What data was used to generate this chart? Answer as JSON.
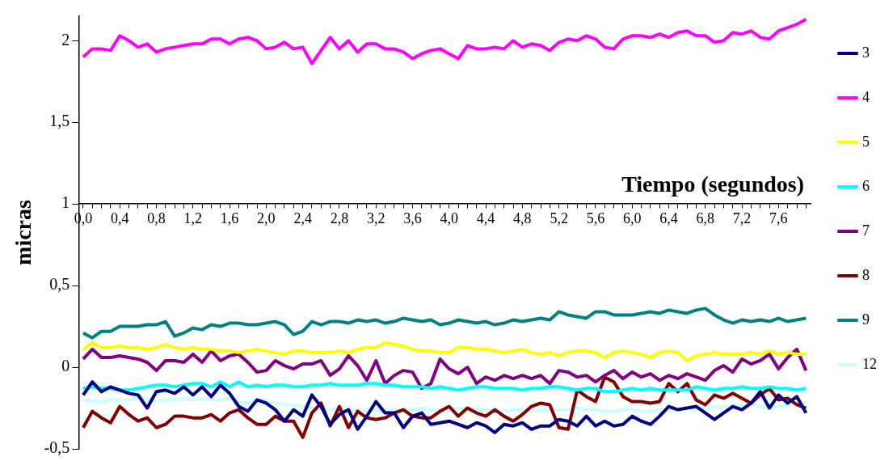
{
  "chart_data": {
    "type": "line",
    "ylabel": "micras",
    "xlabel": "Tiempo (segundos)",
    "categories": [
      "0,0",
      null,
      null,
      null,
      "0,4",
      null,
      null,
      null,
      "0,8",
      null,
      null,
      null,
      "1,2",
      null,
      null,
      null,
      "1,6",
      null,
      null,
      null,
      "2,0",
      null,
      null,
      null,
      "2,4",
      null,
      null,
      null,
      "2,8",
      null,
      null,
      null,
      "3,2",
      null,
      null,
      null,
      "3,6",
      null,
      null,
      null,
      "4,0",
      null,
      null,
      null,
      "4,4",
      null,
      null,
      null,
      "4,8",
      null,
      null,
      null,
      "5,2",
      null,
      null,
      null,
      "5,6",
      null,
      null,
      null,
      "6,0",
      null,
      null,
      null,
      "6,4",
      null,
      null,
      null,
      "6,8",
      null,
      null,
      null,
      "7,2",
      null,
      null,
      null,
      "7,6",
      null,
      null,
      null
    ],
    "ylim": [
      -0.5,
      2.15
    ],
    "yticks": [
      {
        "value": -0.5,
        "label": "-0,5"
      },
      0,
      {
        "value": 0.5,
        "label": "0,5"
      },
      1,
      {
        "value": 1.5,
        "label": "1,5"
      },
      2
    ],
    "legend": "right",
    "marker": "none",
    "line_style": "solid",
    "series": [
      {
        "name": "3",
        "color": "#000080",
        "values": [
          -0.17,
          -0.09,
          -0.15,
          -0.12,
          -0.14,
          -0.16,
          -0.17,
          -0.25,
          -0.15,
          -0.14,
          -0.16,
          -0.12,
          -0.17,
          -0.12,
          -0.18,
          -0.11,
          -0.16,
          -0.24,
          -0.27,
          -0.2,
          -0.22,
          -0.26,
          -0.33,
          -0.26,
          -0.3,
          -0.17,
          -0.24,
          -0.35,
          -0.29,
          -0.26,
          -0.38,
          -0.3,
          -0.21,
          -0.28,
          -0.28,
          -0.37,
          -0.3,
          -0.28,
          -0.35,
          -0.34,
          -0.33,
          -0.35,
          -0.37,
          -0.34,
          -0.36,
          -0.4,
          -0.35,
          -0.36,
          -0.34,
          -0.38,
          -0.36,
          -0.36,
          -0.32,
          -0.33,
          -0.36,
          -0.3,
          -0.36,
          -0.33,
          -0.36,
          -0.35,
          -0.3,
          -0.33,
          -0.35,
          -0.3,
          -0.24,
          -0.26,
          -0.25,
          -0.24,
          -0.28,
          -0.32,
          -0.28,
          -0.24,
          -0.26,
          -0.22,
          -0.15,
          -0.25,
          -0.17,
          -0.22,
          -0.18,
          -0.28
        ]
      },
      {
        "name": "4",
        "color": "#ff00ff",
        "values": [
          1.9,
          1.95,
          1.95,
          1.94,
          2.03,
          2.0,
          1.96,
          1.98,
          1.93,
          1.95,
          1.96,
          1.97,
          1.98,
          1.98,
          2.01,
          2.01,
          1.98,
          2.01,
          2.02,
          2.0,
          1.95,
          1.96,
          1.99,
          1.95,
          1.96,
          1.86,
          1.94,
          2.02,
          1.95,
          2.0,
          1.93,
          1.98,
          1.98,
          1.95,
          1.95,
          1.93,
          1.89,
          1.92,
          1.94,
          1.95,
          1.92,
          1.89,
          1.97,
          1.95,
          1.95,
          1.96,
          1.95,
          2.0,
          1.96,
          1.98,
          1.97,
          1.94,
          1.99,
          2.01,
          2.0,
          2.03,
          2.01,
          1.96,
          1.95,
          2.01,
          2.03,
          2.03,
          2.02,
          2.04,
          2.02,
          2.05,
          2.06,
          2.03,
          2.03,
          1.99,
          2.0,
          2.05,
          2.04,
          2.06,
          2.02,
          2.01,
          2.06,
          2.08,
          2.1,
          2.13
        ]
      },
      {
        "name": "5",
        "color": "#ffff00",
        "values": [
          0.11,
          0.15,
          0.12,
          0.12,
          0.13,
          0.12,
          0.12,
          0.11,
          0.12,
          0.14,
          0.12,
          0.11,
          0.12,
          0.11,
          0.11,
          0.1,
          0.1,
          0.09,
          0.1,
          0.11,
          0.1,
          0.09,
          0.08,
          0.1,
          0.1,
          0.09,
          0.09,
          0.09,
          0.1,
          0.09,
          0.11,
          0.12,
          0.12,
          0.15,
          0.14,
          0.13,
          0.11,
          0.1,
          0.1,
          0.09,
          0.09,
          0.12,
          0.12,
          0.11,
          0.11,
          0.1,
          0.09,
          0.1,
          0.11,
          0.09,
          0.08,
          0.09,
          0.07,
          0.09,
          0.1,
          0.1,
          0.09,
          0.06,
          0.09,
          0.1,
          0.09,
          0.08,
          0.06,
          0.09,
          0.1,
          0.09,
          0.04,
          0.07,
          0.08,
          0.09,
          0.08,
          0.08,
          0.08,
          0.09,
          0.08,
          0.1,
          0.08,
          0.09,
          0.08,
          0.08
        ]
      },
      {
        "name": "6",
        "color": "#00ffff",
        "values": [
          -0.13,
          -0.12,
          -0.13,
          -0.13,
          -0.14,
          -0.14,
          -0.13,
          -0.12,
          -0.11,
          -0.11,
          -0.12,
          -0.11,
          -0.1,
          -0.1,
          -0.12,
          -0.09,
          -0.12,
          -0.09,
          -0.12,
          -0.11,
          -0.12,
          -0.11,
          -0.11,
          -0.12,
          -0.12,
          -0.11,
          -0.11,
          -0.1,
          -0.11,
          -0.11,
          -0.11,
          -0.1,
          -0.1,
          -0.11,
          -0.11,
          -0.12,
          -0.12,
          -0.12,
          -0.13,
          -0.12,
          -0.13,
          -0.14,
          -0.13,
          -0.12,
          -0.12,
          -0.13,
          -0.13,
          -0.13,
          -0.14,
          -0.13,
          -0.13,
          -0.12,
          -0.12,
          -0.13,
          -0.14,
          -0.13,
          -0.13,
          -0.15,
          -0.15,
          -0.14,
          -0.13,
          -0.14,
          -0.13,
          -0.14,
          -0.14,
          -0.14,
          -0.14,
          -0.12,
          -0.13,
          -0.14,
          -0.13,
          -0.13,
          -0.12,
          -0.13,
          -0.13,
          -0.12,
          -0.13,
          -0.13,
          -0.14,
          -0.13
        ]
      },
      {
        "name": "7",
        "color": "#800080",
        "values": [
          0.05,
          0.11,
          0.06,
          0.06,
          0.07,
          0.06,
          0.05,
          0.03,
          -0.02,
          0.04,
          0.04,
          0.03,
          0.08,
          0.03,
          0.1,
          0.04,
          0.07,
          0.08,
          0.03,
          -0.03,
          -0.02,
          0.04,
          0.01,
          -0.01,
          0.02,
          0.02,
          0.04,
          -0.05,
          -0.01,
          0.07,
          0.01,
          -0.08,
          0.04,
          -0.1,
          -0.05,
          -0.02,
          -0.03,
          -0.13,
          -0.1,
          0.05,
          -0.01,
          -0.04,
          0.0,
          -0.1,
          -0.06,
          -0.08,
          -0.05,
          -0.07,
          -0.05,
          -0.07,
          -0.05,
          -0.1,
          -0.02,
          -0.03,
          -0.06,
          -0.05,
          -0.09,
          -0.05,
          -0.02,
          -0.07,
          -0.03,
          -0.06,
          -0.04,
          -0.08,
          -0.05,
          -0.07,
          -0.04,
          -0.06,
          -0.08,
          -0.02,
          0.01,
          -0.03,
          0.05,
          0.02,
          0.04,
          0.08,
          -0.01,
          0.06,
          0.11,
          -0.02
        ]
      },
      {
        "name": "8",
        "color": "#800000",
        "values": [
          -0.37,
          -0.27,
          -0.31,
          -0.34,
          -0.24,
          -0.29,
          -0.33,
          -0.31,
          -0.37,
          -0.35,
          -0.3,
          -0.3,
          -0.31,
          -0.31,
          -0.29,
          -0.33,
          -0.28,
          -0.26,
          -0.31,
          -0.35,
          -0.35,
          -0.3,
          -0.33,
          -0.33,
          -0.43,
          -0.28,
          -0.22,
          -0.36,
          -0.24,
          -0.37,
          -0.27,
          -0.31,
          -0.32,
          -0.31,
          -0.28,
          -0.26,
          -0.3,
          -0.31,
          -0.31,
          -0.27,
          -0.24,
          -0.3,
          -0.25,
          -0.28,
          -0.3,
          -0.26,
          -0.3,
          -0.33,
          -0.29,
          -0.24,
          -0.22,
          -0.23,
          -0.37,
          -0.38,
          -0.14,
          -0.18,
          -0.21,
          -0.06,
          -0.09,
          -0.18,
          -0.21,
          -0.21,
          -0.22,
          -0.21,
          -0.1,
          -0.15,
          -0.1,
          -0.2,
          -0.23,
          -0.17,
          -0.19,
          -0.16,
          -0.19,
          -0.22,
          -0.17,
          -0.13,
          -0.2,
          -0.19,
          -0.23,
          -0.25
        ]
      },
      {
        "name": "9",
        "color": "#008080",
        "values": [
          0.21,
          0.18,
          0.22,
          0.22,
          0.25,
          0.25,
          0.25,
          0.26,
          0.26,
          0.28,
          0.19,
          0.21,
          0.24,
          0.23,
          0.26,
          0.25,
          0.27,
          0.27,
          0.26,
          0.26,
          0.27,
          0.28,
          0.26,
          0.2,
          0.22,
          0.28,
          0.26,
          0.28,
          0.28,
          0.27,
          0.29,
          0.28,
          0.29,
          0.27,
          0.28,
          0.3,
          0.29,
          0.28,
          0.29,
          0.26,
          0.27,
          0.29,
          0.28,
          0.27,
          0.28,
          0.26,
          0.27,
          0.29,
          0.28,
          0.29,
          0.3,
          0.29,
          0.34,
          0.32,
          0.31,
          0.3,
          0.34,
          0.34,
          0.32,
          0.32,
          0.32,
          0.33,
          0.34,
          0.33,
          0.35,
          0.34,
          0.33,
          0.35,
          0.36,
          0.32,
          0.29,
          0.27,
          0.29,
          0.28,
          0.29,
          0.28,
          0.3,
          0.28,
          0.29,
          0.3
        ]
      },
      {
        "name": "12",
        "color": "#ccffff",
        "values": [
          -0.2,
          -0.21,
          -0.21,
          -0.2,
          -0.2,
          -0.2,
          -0.19,
          -0.19,
          -0.21,
          -0.2,
          -0.2,
          -0.19,
          -0.2,
          -0.19,
          -0.2,
          -0.2,
          -0.19,
          -0.21,
          -0.22,
          -0.2,
          -0.2,
          -0.22,
          -0.23,
          -0.23,
          -0.24,
          -0.25,
          -0.25,
          -0.26,
          -0.25,
          -0.27,
          -0.26,
          -0.27,
          -0.26,
          -0.27,
          -0.26,
          -0.26,
          -0.26,
          -0.25,
          -0.26,
          -0.27,
          -0.26,
          -0.25,
          -0.25,
          -0.26,
          -0.26,
          -0.27,
          -0.27,
          -0.26,
          -0.26,
          -0.27,
          -0.26,
          -0.26,
          -0.26,
          -0.26,
          -0.25,
          -0.26,
          -0.26,
          -0.27,
          -0.27,
          -0.26,
          -0.26,
          -0.27,
          -0.27,
          -0.26,
          -0.26,
          -0.26,
          -0.25,
          -0.26,
          -0.25,
          -0.24,
          -0.24,
          -0.24,
          -0.23,
          -0.22,
          -0.24,
          -0.25,
          -0.24,
          -0.23,
          -0.22,
          -0.22
        ]
      }
    ]
  }
}
